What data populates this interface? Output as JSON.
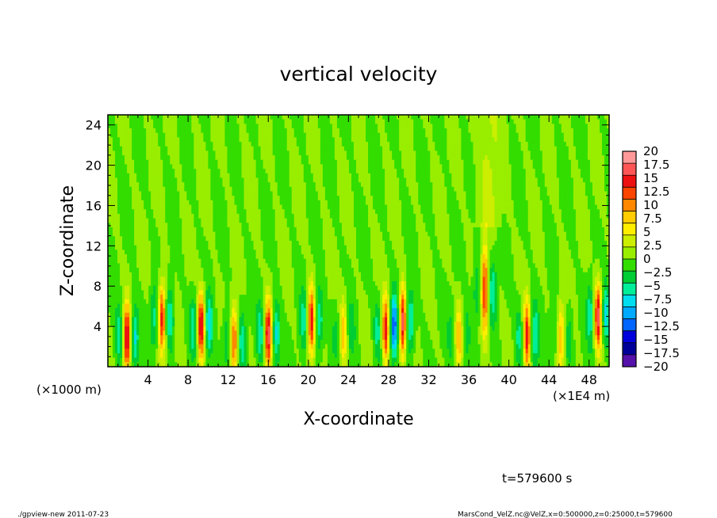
{
  "chart_data": {
    "type": "heatmap",
    "title": "vertical velocity",
    "xlabel": "X-coordinate",
    "ylabel": "Z-coordinate",
    "x_unit_left": "(×1000 m)",
    "x_unit_right": "(×1E4 m)",
    "xlim": [
      0,
      50
    ],
    "ylim": [
      0,
      25
    ],
    "x_ticks": [
      4,
      8,
      12,
      16,
      20,
      24,
      28,
      32,
      36,
      40,
      44,
      48
    ],
    "y_ticks": [
      4,
      8,
      12,
      16,
      20,
      24
    ],
    "colorbar": {
      "labels": [
        "20",
        "17.5",
        "15",
        "12.5",
        "10",
        "7.5",
        "5",
        "2.5",
        "0",
        "−2.5",
        "−5",
        "−7.5",
        "−10",
        "−12.5",
        "−15",
        "−17.5",
        "−20"
      ],
      "colors": [
        "#ff9999",
        "#ff5555",
        "#ee1111",
        "#ff4400",
        "#ff8800",
        "#ffcc00",
        "#ffee00",
        "#ccee00",
        "#99ee00",
        "#33dd00",
        "#00cc33",
        "#00ee99",
        "#00ddee",
        "#00aaff",
        "#0066ff",
        "#0000dd",
        "#000099",
        "#5511aa"
      ]
    },
    "updrafts": [
      {
        "x": 1.9,
        "z": 2.8,
        "amp": 17
      },
      {
        "x": 5.4,
        "z": 4.8,
        "amp": 15
      },
      {
        "x": 9.3,
        "z": 4.0,
        "amp": 17
      },
      {
        "x": 12.6,
        "z": 2.6,
        "amp": 12
      },
      {
        "x": 16.0,
        "z": 3.2,
        "amp": 17
      },
      {
        "x": 20.3,
        "z": 4.6,
        "amp": 15
      },
      {
        "x": 23.5,
        "z": 3.4,
        "amp": 8
      },
      {
        "x": 27.7,
        "z": 3.6,
        "amp": 15
      },
      {
        "x": 29.4,
        "z": 4.4,
        "amp": 17
      },
      {
        "x": 35.0,
        "z": 3.0,
        "amp": 8
      },
      {
        "x": 37.6,
        "z": 7.5,
        "amp": 14
      },
      {
        "x": 41.8,
        "z": 3.0,
        "amp": 15
      },
      {
        "x": 45.2,
        "z": 3.0,
        "amp": 8
      },
      {
        "x": 48.9,
        "z": 5.0,
        "amp": 17
      }
    ]
  },
  "time_label": "t=579600 s",
  "footer_left": "./gpview-new   2011-07-23",
  "footer_right": "MarsCond_VelZ.nc@VelZ,x=0:500000,z=0:25000,t=579600"
}
